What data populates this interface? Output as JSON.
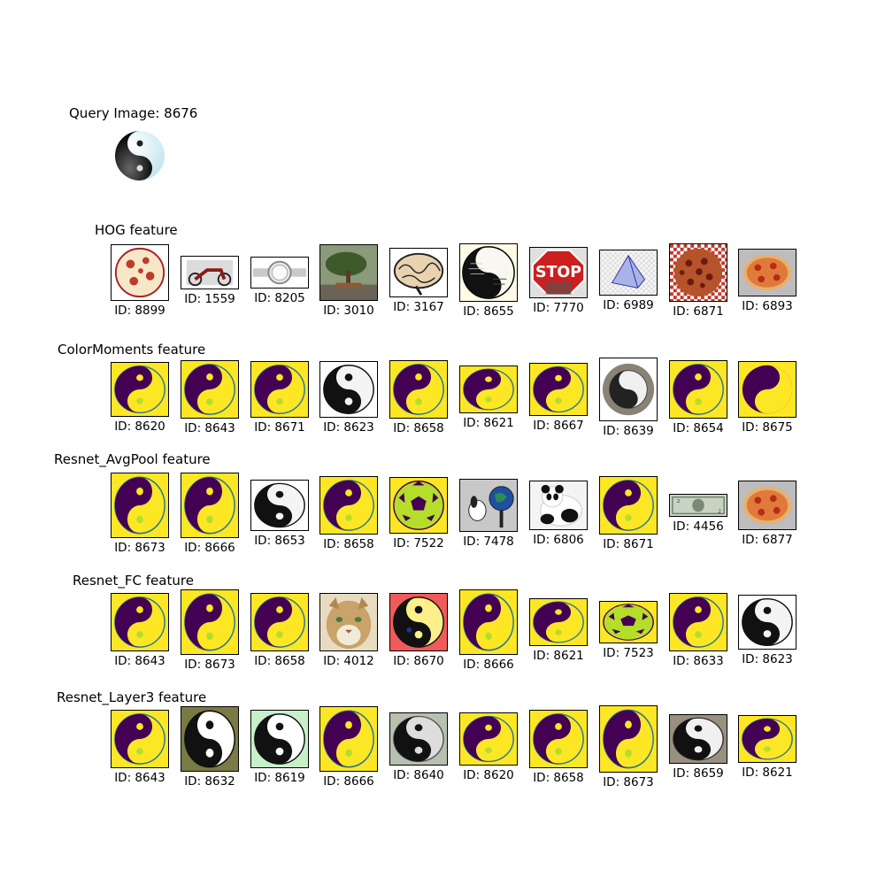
{
  "query": {
    "title": "Query Image: 8676",
    "image": "yin-yang-glossy"
  },
  "id_prefix": "ID: ",
  "sections": [
    {
      "name": "HOG feature",
      "items": [
        {
          "id": "8899",
          "kind": "pizza-sketch"
        },
        {
          "id": "1559",
          "kind": "motorcycle"
        },
        {
          "id": "8205",
          "kind": "watch"
        },
        {
          "id": "3010",
          "kind": "bonsai"
        },
        {
          "id": "3167",
          "kind": "brain"
        },
        {
          "id": "8655",
          "kind": "yin-yang-text"
        },
        {
          "id": "7770",
          "kind": "stop-sign"
        },
        {
          "id": "6989",
          "kind": "pyramid"
        },
        {
          "id": "6871",
          "kind": "pizza-check"
        },
        {
          "id": "6893",
          "kind": "pizza"
        }
      ]
    },
    {
      "name": "ColorMoments feature",
      "items": [
        {
          "id": "8620",
          "kind": "yy-yellow"
        },
        {
          "id": "8643",
          "kind": "yy-yellow"
        },
        {
          "id": "8671",
          "kind": "yy-yellow"
        },
        {
          "id": "8623",
          "kind": "yy-bw"
        },
        {
          "id": "8658",
          "kind": "yy-yellow"
        },
        {
          "id": "8621",
          "kind": "yy-yellow"
        },
        {
          "id": "8667",
          "kind": "yy-yellow"
        },
        {
          "id": "8639",
          "kind": "watch-yy"
        },
        {
          "id": "8654",
          "kind": "yy-yellow"
        },
        {
          "id": "8675",
          "kind": "yy-pixel"
        }
      ]
    },
    {
      "name": "Resnet_AvgPool feature",
      "items": [
        {
          "id": "8673",
          "kind": "yy-yellow"
        },
        {
          "id": "8666",
          "kind": "yy-yellow"
        },
        {
          "id": "8653",
          "kind": "yy-bw"
        },
        {
          "id": "8658",
          "kind": "yy-yellow"
        },
        {
          "id": "7522",
          "kind": "soccer"
        },
        {
          "id": "7478",
          "kind": "snoopy"
        },
        {
          "id": "6806",
          "kind": "panda"
        },
        {
          "id": "8671",
          "kind": "yy-yellow"
        },
        {
          "id": "4456",
          "kind": "dollar"
        },
        {
          "id": "6877",
          "kind": "pizza"
        }
      ]
    },
    {
      "name": "Resnet_FC feature",
      "items": [
        {
          "id": "8643",
          "kind": "yy-yellow"
        },
        {
          "id": "8673",
          "kind": "yy-yellow"
        },
        {
          "id": "8658",
          "kind": "yy-yellow"
        },
        {
          "id": "4012",
          "kind": "cougar"
        },
        {
          "id": "8670",
          "kind": "yy-red"
        },
        {
          "id": "8666",
          "kind": "yy-yellow"
        },
        {
          "id": "8621",
          "kind": "yy-yellow"
        },
        {
          "id": "7523",
          "kind": "soccer"
        },
        {
          "id": "8633",
          "kind": "yy-yellow"
        },
        {
          "id": "8623",
          "kind": "yy-bw"
        }
      ]
    },
    {
      "name": "Resnet_Layer3 feature",
      "items": [
        {
          "id": "8643",
          "kind": "yy-yellow"
        },
        {
          "id": "8632",
          "kind": "yy-olive"
        },
        {
          "id": "8619",
          "kind": "yy-green"
        },
        {
          "id": "8666",
          "kind": "yy-yellow"
        },
        {
          "id": "8640",
          "kind": "yy-gray"
        },
        {
          "id": "8620",
          "kind": "yy-yellow"
        },
        {
          "id": "8658",
          "kind": "yy-yellow"
        },
        {
          "id": "8673",
          "kind": "yy-yellow"
        },
        {
          "id": "8659",
          "kind": "yy-taupe"
        },
        {
          "id": "8621",
          "kind": "yy-yellow"
        }
      ]
    }
  ]
}
